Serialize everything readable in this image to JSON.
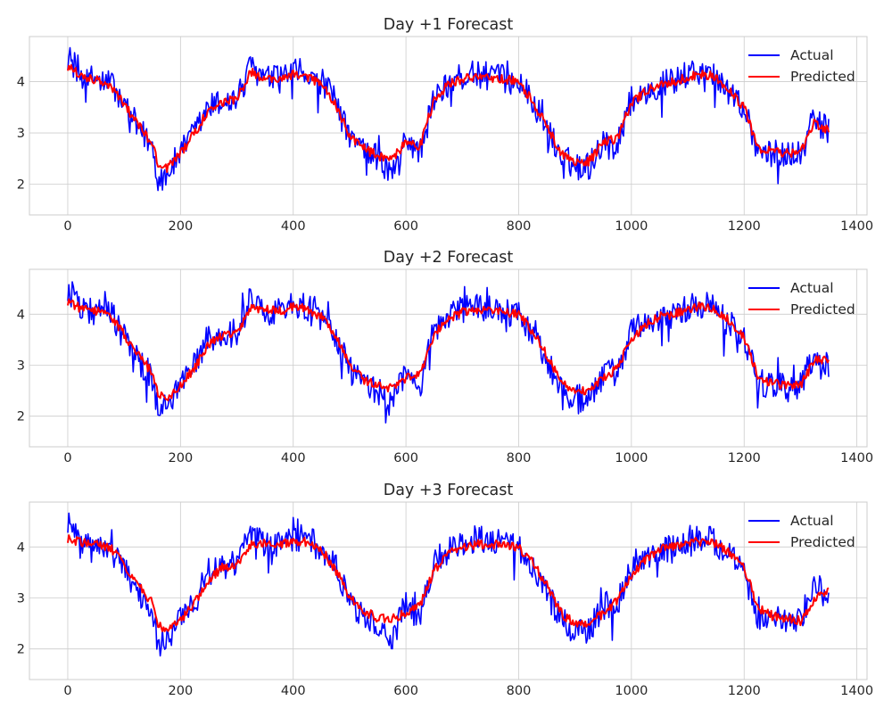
{
  "colors": {
    "actual": "#0000ff",
    "predicted": "#ff0000",
    "grid": "#cccccc",
    "axes_edge": "#cccccc",
    "text": "#262626"
  },
  "legend": {
    "placement": "top-right",
    "actual_label": "Actual",
    "predicted_label": "Predicted"
  },
  "chart_data": [
    {
      "type": "line",
      "title": "Day +1 Forecast",
      "xlabel": "",
      "ylabel": "",
      "xlim": [
        -68,
        1418
      ],
      "ylim": [
        1.4,
        4.88
      ],
      "xticks": [
        0,
        200,
        400,
        600,
        800,
        1000,
        1200,
        1400
      ],
      "yticks": [
        2,
        3,
        4
      ],
      "grid": true,
      "legend_placement": "top-right",
      "series": [
        {
          "name": "Actual",
          "color": "#0000ff",
          "x": [
            0,
            25,
            50,
            75,
            100,
            125,
            150,
            160,
            175,
            200,
            225,
            250,
            275,
            300,
            325,
            350,
            375,
            400,
            425,
            450,
            475,
            500,
            525,
            550,
            575,
            600,
            625,
            650,
            675,
            700,
            725,
            750,
            775,
            800,
            825,
            850,
            875,
            900,
            925,
            950,
            975,
            1000,
            1025,
            1050,
            1075,
            1100,
            1125,
            1150,
            1175,
            1200,
            1225,
            1250,
            1275,
            1300,
            1325,
            1350
          ],
          "y": [
            4.5,
            4.1,
            4.05,
            4.0,
            3.55,
            3.1,
            2.75,
            2.1,
            2.2,
            2.6,
            3.0,
            3.5,
            3.6,
            3.65,
            4.3,
            4.05,
            4.05,
            4.2,
            4.15,
            4.0,
            3.6,
            2.9,
            2.65,
            2.5,
            2.2,
            2.9,
            2.6,
            3.7,
            3.95,
            4.1,
            4.15,
            4.1,
            4.05,
            4.0,
            3.6,
            3.1,
            2.55,
            2.35,
            2.35,
            2.85,
            2.85,
            3.65,
            3.8,
            3.95,
            4.0,
            4.15,
            4.2,
            4.1,
            3.8,
            3.5,
            2.65,
            2.6,
            2.6,
            2.6,
            3.3,
            3.0
          ]
        },
        {
          "name": "Predicted",
          "color": "#ff0000",
          "x": [
            0,
            25,
            50,
            75,
            100,
            125,
            150,
            160,
            175,
            200,
            225,
            250,
            275,
            300,
            325,
            350,
            375,
            400,
            425,
            450,
            475,
            500,
            525,
            550,
            575,
            600,
            625,
            650,
            675,
            700,
            725,
            750,
            775,
            800,
            825,
            850,
            875,
            900,
            925,
            950,
            975,
            1000,
            1025,
            1050,
            1075,
            1100,
            1125,
            1150,
            1175,
            1200,
            1225,
            1250,
            1275,
            1300,
            1325,
            1350
          ],
          "y": [
            4.3,
            4.1,
            4.05,
            3.95,
            3.55,
            3.15,
            2.8,
            2.4,
            2.3,
            2.6,
            3.0,
            3.45,
            3.6,
            3.65,
            4.2,
            4.05,
            4.05,
            4.15,
            4.1,
            3.95,
            3.55,
            2.95,
            2.7,
            2.55,
            2.5,
            2.8,
            2.75,
            3.65,
            3.95,
            4.05,
            4.1,
            4.05,
            4.05,
            4.0,
            3.6,
            3.15,
            2.6,
            2.45,
            2.45,
            2.8,
            2.9,
            3.6,
            3.8,
            3.95,
            4.0,
            4.1,
            4.15,
            4.1,
            3.8,
            3.5,
            2.7,
            2.65,
            2.6,
            2.6,
            3.2,
            3.05
          ]
        }
      ]
    },
    {
      "type": "line",
      "title": "Day +2 Forecast",
      "xlabel": "",
      "ylabel": "",
      "xlim": [
        -68,
        1418
      ],
      "ylim": [
        1.4,
        4.88
      ],
      "xticks": [
        0,
        200,
        400,
        600,
        800,
        1000,
        1200,
        1400
      ],
      "yticks": [
        2,
        3,
        4
      ],
      "grid": true,
      "legend_placement": "top-right",
      "series": [
        {
          "name": "Actual",
          "color": "#0000ff",
          "x": [
            0,
            25,
            50,
            75,
            100,
            125,
            150,
            160,
            175,
            200,
            225,
            250,
            275,
            300,
            325,
            350,
            375,
            400,
            425,
            450,
            475,
            500,
            525,
            550,
            575,
            600,
            625,
            650,
            675,
            700,
            725,
            750,
            775,
            800,
            825,
            850,
            875,
            900,
            925,
            950,
            975,
            1000,
            1025,
            1050,
            1075,
            1100,
            1125,
            1150,
            1175,
            1200,
            1225,
            1250,
            1275,
            1300,
            1325,
            1350
          ],
          "y": [
            4.5,
            4.1,
            4.05,
            4.0,
            3.55,
            3.1,
            2.75,
            2.1,
            2.2,
            2.6,
            3.0,
            3.5,
            3.6,
            3.65,
            4.3,
            4.05,
            4.05,
            4.2,
            4.15,
            4.0,
            3.6,
            2.9,
            2.65,
            2.5,
            2.2,
            2.9,
            2.6,
            3.7,
            3.95,
            4.1,
            4.15,
            4.1,
            4.05,
            4.0,
            3.6,
            3.1,
            2.55,
            2.35,
            2.35,
            2.85,
            2.85,
            3.65,
            3.8,
            3.95,
            4.0,
            4.15,
            4.2,
            4.1,
            3.8,
            3.5,
            2.65,
            2.6,
            2.6,
            2.6,
            3.3,
            3.0
          ]
        },
        {
          "name": "Predicted",
          "color": "#ff0000",
          "x": [
            0,
            25,
            50,
            75,
            100,
            125,
            150,
            160,
            175,
            200,
            225,
            250,
            275,
            300,
            325,
            350,
            375,
            400,
            425,
            450,
            475,
            500,
            525,
            550,
            575,
            600,
            625,
            650,
            675,
            700,
            725,
            750,
            775,
            800,
            825,
            850,
            875,
            900,
            925,
            950,
            975,
            1000,
            1025,
            1050,
            1075,
            1100,
            1125,
            1150,
            1175,
            1200,
            1225,
            1250,
            1275,
            1300,
            1325,
            1350
          ],
          "y": [
            4.25,
            4.1,
            4.05,
            4.0,
            3.6,
            3.2,
            2.85,
            2.45,
            2.35,
            2.6,
            2.95,
            3.4,
            3.6,
            3.65,
            4.1,
            4.1,
            4.05,
            4.15,
            4.1,
            3.95,
            3.55,
            3.0,
            2.7,
            2.6,
            2.55,
            2.75,
            2.8,
            3.6,
            3.9,
            4.05,
            4.1,
            4.05,
            4.05,
            4.0,
            3.65,
            3.2,
            2.65,
            2.5,
            2.5,
            2.75,
            2.95,
            3.5,
            3.8,
            3.95,
            4.0,
            4.1,
            4.15,
            4.1,
            3.85,
            3.55,
            2.75,
            2.65,
            2.6,
            2.6,
            3.1,
            3.1
          ]
        }
      ]
    },
    {
      "type": "line",
      "title": "Day +3 Forecast",
      "xlabel": "",
      "ylabel": "",
      "xlim": [
        -68,
        1418
      ],
      "ylim": [
        1.4,
        4.88
      ],
      "xticks": [
        0,
        200,
        400,
        600,
        800,
        1000,
        1200,
        1400
      ],
      "yticks": [
        2,
        3,
        4
      ],
      "grid": true,
      "legend_placement": "top-right",
      "series": [
        {
          "name": "Actual",
          "color": "#0000ff",
          "x": [
            0,
            25,
            50,
            75,
            100,
            125,
            150,
            160,
            175,
            200,
            225,
            250,
            275,
            300,
            325,
            350,
            375,
            400,
            425,
            450,
            475,
            500,
            525,
            550,
            575,
            600,
            625,
            650,
            675,
            700,
            725,
            750,
            775,
            800,
            825,
            850,
            875,
            900,
            925,
            950,
            975,
            1000,
            1025,
            1050,
            1075,
            1100,
            1125,
            1150,
            1175,
            1200,
            1225,
            1250,
            1275,
            1300,
            1325,
            1350
          ],
          "y": [
            4.5,
            4.1,
            4.05,
            4.0,
            3.55,
            3.1,
            2.75,
            2.1,
            2.2,
            2.6,
            3.0,
            3.5,
            3.6,
            3.65,
            4.3,
            4.05,
            4.05,
            4.2,
            4.15,
            4.0,
            3.6,
            2.9,
            2.65,
            2.5,
            2.2,
            2.9,
            2.6,
            3.7,
            3.95,
            4.1,
            4.15,
            4.1,
            4.05,
            4.0,
            3.6,
            3.1,
            2.55,
            2.35,
            2.35,
            2.85,
            2.85,
            3.65,
            3.8,
            3.95,
            4.0,
            4.15,
            4.2,
            4.1,
            3.8,
            3.5,
            2.65,
            2.6,
            2.6,
            2.6,
            3.3,
            3.0
          ]
        },
        {
          "name": "Predicted",
          "color": "#ff0000",
          "x": [
            0,
            25,
            50,
            75,
            100,
            125,
            150,
            160,
            175,
            200,
            225,
            250,
            275,
            300,
            325,
            350,
            375,
            400,
            425,
            450,
            475,
            500,
            525,
            550,
            575,
            600,
            625,
            650,
            675,
            700,
            725,
            750,
            775,
            800,
            825,
            850,
            875,
            900,
            925,
            950,
            975,
            1000,
            1025,
            1050,
            1075,
            1100,
            1125,
            1150,
            1175,
            1200,
            1225,
            1250,
            1275,
            1300,
            1325,
            1350
          ],
          "y": [
            4.15,
            4.1,
            4.05,
            4.0,
            3.65,
            3.25,
            2.9,
            2.5,
            2.35,
            2.55,
            2.9,
            3.35,
            3.6,
            3.65,
            4.05,
            4.1,
            4.05,
            4.1,
            4.1,
            3.95,
            3.55,
            3.05,
            2.75,
            2.6,
            2.6,
            2.7,
            2.85,
            3.55,
            3.85,
            4.0,
            4.05,
            4.05,
            4.05,
            4.0,
            3.7,
            3.25,
            2.7,
            2.5,
            2.5,
            2.7,
            2.95,
            3.45,
            3.75,
            3.95,
            4.0,
            4.1,
            4.1,
            4.05,
            3.9,
            3.6,
            2.8,
            2.65,
            2.6,
            2.55,
            3.0,
            3.15
          ]
        }
      ]
    }
  ]
}
